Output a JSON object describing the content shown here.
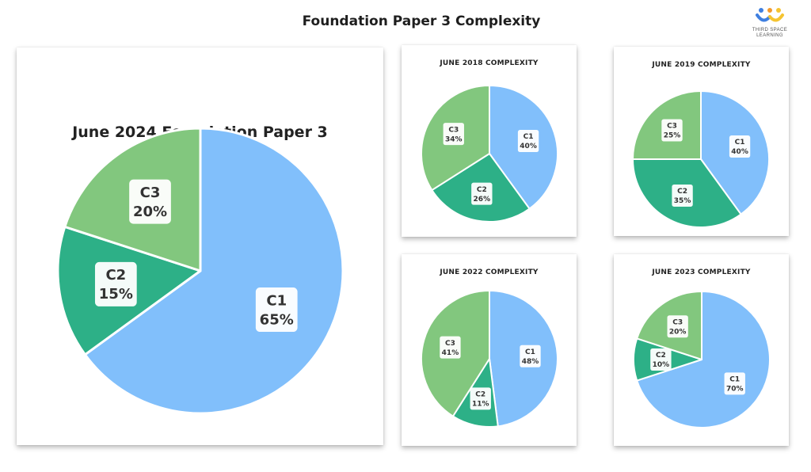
{
  "page": {
    "title": "Foundation Paper 3 Complexity",
    "logo": {
      "line1": "THIRD SPACE",
      "line2": "LEARNING"
    }
  },
  "colors": {
    "C1": "#81bffb",
    "C2": "#2db087",
    "C3": "#82c77e"
  },
  "chart_data": [
    {
      "type": "pie",
      "title": "June 2024 Foundation Paper 3",
      "slices": [
        {
          "label": "C1",
          "value": 65,
          "display": "65%"
        },
        {
          "label": "C2",
          "value": 15,
          "display": "15%"
        },
        {
          "label": "C3",
          "value": 20,
          "display": "20%"
        }
      ]
    },
    {
      "type": "pie",
      "title": "JUNE 2018 COMPLEXITY",
      "slices": [
        {
          "label": "C1",
          "value": 40,
          "display": "40%"
        },
        {
          "label": "C2",
          "value": 26,
          "display": "26%"
        },
        {
          "label": "C3",
          "value": 34,
          "display": "34%"
        }
      ]
    },
    {
      "type": "pie",
      "title": "JUNE 2019 COMPLEXITY",
      "slices": [
        {
          "label": "C1",
          "value": 40,
          "display": "40%"
        },
        {
          "label": "C2",
          "value": 35,
          "display": "35%"
        },
        {
          "label": "C3",
          "value": 25,
          "display": "25%"
        }
      ]
    },
    {
      "type": "pie",
      "title": "JUNE 2022 COMPLEXITY",
      "slices": [
        {
          "label": "C1",
          "value": 48,
          "display": "48%"
        },
        {
          "label": "C2",
          "value": 11,
          "display": "11%"
        },
        {
          "label": "C3",
          "value": 41,
          "display": "41%"
        }
      ]
    },
    {
      "type": "pie",
      "title": "JUNE 2023 COMPLEXITY",
      "slices": [
        {
          "label": "C1",
          "value": 70,
          "display": "70%"
        },
        {
          "label": "C2",
          "value": 10,
          "display": "10%"
        },
        {
          "label": "C3",
          "value": 20,
          "display": "20%"
        }
      ]
    }
  ]
}
